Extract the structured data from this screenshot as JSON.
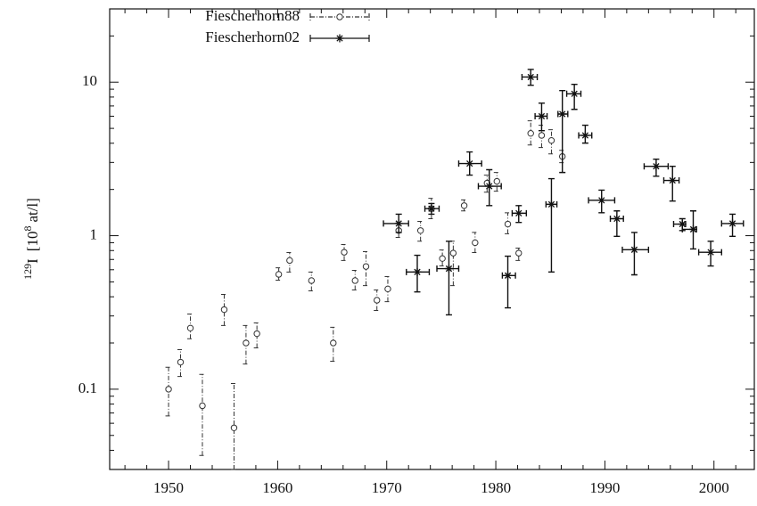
{
  "chart_data": {
    "type": "errorbar",
    "ylabel": {
      "mass": "129",
      "element": "I",
      "unit_open": "[10",
      "exponent": "8",
      "unit_close": "at/l]"
    },
    "xlim": [
      1944.6,
      2003.7
    ],
    "xticks": [
      1950,
      1960,
      1970,
      1980,
      1990,
      2000
    ],
    "xminorticks": [
      1946,
      1948,
      1952,
      1954,
      1956,
      1958,
      1962,
      1964,
      1966,
      1968,
      1972,
      1974,
      1976,
      1978,
      1982,
      1984,
      1986,
      1988,
      1992,
      1994,
      1996,
      1998,
      2002
    ],
    "ylim": [
      0.03,
      30
    ],
    "ylog": true,
    "yticks": [
      0.1,
      1,
      10
    ],
    "yminorticks": [
      0.04,
      0.05,
      0.06,
      0.07,
      0.08,
      0.09,
      0.2,
      0.3,
      0.4,
      0.5,
      0.6,
      0.7,
      0.8,
      0.9,
      2,
      3,
      4,
      5,
      6,
      7,
      8,
      9,
      20
    ],
    "legend": "upper left",
    "series": [
      {
        "name": "Fiescherhorn88",
        "color": "#333333",
        "marker": "circle",
        "linestyle": "dashdot",
        "x": [
          1950.0,
          1951.1,
          1952.0,
          1953.1,
          1955.1,
          1956.0,
          1957.1,
          1958.1,
          1960.1,
          1961.1,
          1963.1,
          1965.1,
          1966.1,
          1967.1,
          1968.1,
          1969.1,
          1970.1,
          1971.1,
          1973.1,
          1974.1,
          1975.1,
          1976.1,
          1977.1,
          1978.1,
          1979.2,
          1980.1,
          1981.1,
          1982.1,
          1983.2,
          1984.2,
          1985.1,
          1986.1
        ],
        "y": [
          0.1,
          0.15,
          0.25,
          0.078,
          0.33,
          0.056,
          0.2,
          0.23,
          0.56,
          0.69,
          0.51,
          0.2,
          0.78,
          0.51,
          0.63,
          0.38,
          0.45,
          1.08,
          1.08,
          1.5,
          0.71,
          0.77,
          1.57,
          0.9,
          2.2,
          2.26,
          1.19,
          0.77,
          4.64,
          4.5,
          4.17,
          3.28
        ],
        "ymin": [
          0.067,
          0.121,
          0.213,
          0.037,
          0.26,
          0.03,
          0.146,
          0.186,
          0.513,
          0.58,
          0.437,
          0.152,
          0.689,
          0.443,
          0.473,
          0.326,
          0.372,
          0.974,
          0.92,
          1.29,
          0.635,
          0.473,
          1.45,
          0.776,
          1.92,
          1.95,
          1.03,
          0.689,
          3.9,
          3.75,
          3.41,
          2.99
        ],
        "ymax": [
          0.139,
          0.181,
          0.309,
          0.125,
          0.414,
          0.109,
          0.26,
          0.27,
          0.618,
          0.776,
          0.58,
          0.253,
          0.875,
          0.594,
          0.787,
          0.443,
          0.541,
          1.21,
          1.24,
          1.75,
          0.807,
          0.92,
          1.71,
          1.05,
          2.48,
          2.58,
          1.41,
          0.83,
          5.6,
          5.24,
          4.9,
          3.6
        ]
      },
      {
        "name": "Fiescherhorn02",
        "color": "#111111",
        "marker": "star",
        "linestyle": "solid",
        "x": [
          1983.2,
          1984.2,
          1985.1,
          1986.1,
          1987.2,
          1988.2,
          1971.1,
          1972.8,
          1974.1,
          1975.7,
          1977.6,
          1979.4,
          1981.1,
          1982.1,
          1989.7,
          1991.1,
          1992.7,
          1994.7,
          1996.2,
          1997.1,
          1998.1,
          1999.7,
          2001.7
        ],
        "y": [
          10.8,
          6.0,
          1.6,
          6.2,
          8.4,
          4.5,
          1.2,
          0.58,
          1.5,
          0.61,
          2.95,
          2.1,
          0.55,
          1.4,
          1.7,
          1.29,
          0.81,
          2.83,
          2.29,
          1.19,
          1.1,
          0.78,
          1.2
        ],
        "ymin": [
          9.55,
          4.83,
          0.58,
          2.58,
          6.65,
          4.01,
          1.05,
          0.43,
          1.38,
          0.305,
          2.48,
          1.57,
          0.339,
          1.22,
          1.41,
          0.99,
          0.556,
          2.44,
          1.68,
          1.08,
          0.82,
          0.635,
          0.99
        ],
        "ymax": [
          12.1,
          7.3,
          2.35,
          8.81,
          9.68,
          5.24,
          1.38,
          0.745,
          1.62,
          0.92,
          3.51,
          2.69,
          0.735,
          1.57,
          1.98,
          1.45,
          1.05,
          3.15,
          2.83,
          1.29,
          1.45,
          0.92,
          1.38
        ],
        "xmin": [
          1982.4,
          1983.6,
          1984.6,
          1985.7,
          1986.5,
          1987.6,
          1969.7,
          1971.8,
          1973.5,
          1974.6,
          1976.6,
          1978.4,
          1980.6,
          1981.5,
          1988.5,
          1990.5,
          1991.6,
          1993.6,
          1995.4,
          1996.3,
          1997.1,
          1998.6,
          2000.7
        ],
        "xmax": [
          1983.8,
          1984.7,
          1985.6,
          1986.6,
          1987.8,
          1988.8,
          1972.0,
          1973.9,
          1974.8,
          1976.6,
          1978.7,
          1980.5,
          1981.8,
          1982.8,
          1990.9,
          1991.7,
          1994.0,
          1995.8,
          1996.8,
          1997.4,
          1998.4,
          2000.7,
          2002.7
        ]
      }
    ]
  }
}
